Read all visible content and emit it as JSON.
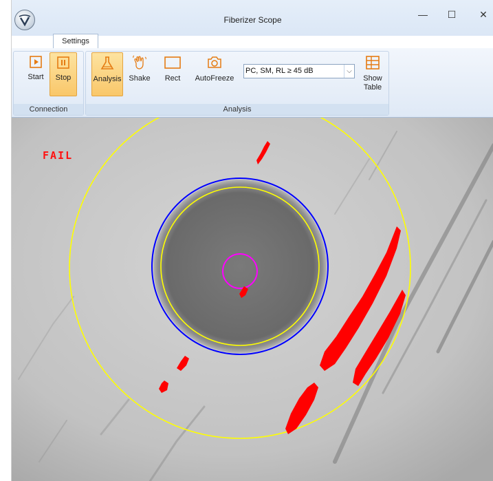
{
  "window": {
    "title": "Fiberizer Scope",
    "controls": {
      "minimize": "—",
      "maximize": "☐",
      "close": "✕"
    }
  },
  "ribbon": {
    "tab": "Settings",
    "groups": {
      "connection": {
        "label": "Connection",
        "start": "Start",
        "stop": "Stop"
      },
      "analysis": {
        "label": "Analysis",
        "analysis": "Analysis",
        "shake": "Shake",
        "rect": "Rect",
        "autofreeze": "AutoFreeze",
        "filter": "PC, SM, RL ≥ 45 dB",
        "show_table_line1": "Show",
        "show_table_line2": "Table"
      }
    }
  },
  "scope": {
    "status": "FAIL",
    "status_color": "#ff1010",
    "ring_color": "#ffff00",
    "cladding_color": "#0000ff",
    "core_color": "#ff00ff",
    "defect_color": "#ff0000"
  },
  "colors": {
    "accent_active": "#f9c76a",
    "icon_orange": "#e57b12"
  }
}
